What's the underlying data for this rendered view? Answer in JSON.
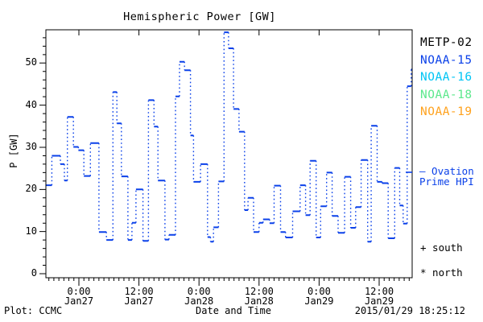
{
  "title": "Hemispheric Power [GW]",
  "colors": {
    "curve": "#0b41e9",
    "frame": "#000000",
    "text": "#000000",
    "ovation": "#0b41e9"
  },
  "axes": {
    "y_label": "P [GW]",
    "y_ticks": [
      0,
      10,
      20,
      30,
      40,
      50
    ],
    "y_minor_step": 2,
    "ylim": [
      0,
      57.9
    ],
    "x_axis_title": "Date and Time",
    "x_major_hours": [
      0,
      12,
      24,
      36,
      48,
      60
    ],
    "x_tick_labels": [
      {
        "time": "0:00",
        "date": "Jan27"
      },
      {
        "time": "12:00",
        "date": "Jan27"
      },
      {
        "time": "0:00",
        "date": "Jan28"
      },
      {
        "time": "12:00",
        "date": "Jan28"
      },
      {
        "time": "0:00",
        "date": "Jan29"
      },
      {
        "time": "12:00",
        "date": "Jan29"
      }
    ],
    "xlim_hours": [
      -6.6,
      66.6
    ]
  },
  "legend": {
    "items": [
      {
        "label": "METP-02",
        "color": "#000000"
      },
      {
        "label": "NOAA-15",
        "color": "#0b41e9"
      },
      {
        "label": "NOAA-16",
        "color": "#00c5f5"
      },
      {
        "label": "NOAA-18",
        "color": "#5ce88c"
      },
      {
        "label": "NOAA-19",
        "color": "#ffa21e"
      }
    ]
  },
  "annotations": {
    "series_marker_line1": "– Ovation",
    "series_marker_line2": "Prime HPI",
    "south_symbol_label": "+ south",
    "north_symbol_label": "* north",
    "plot_credit": "Plot: CCMC",
    "timestamp": "2015/01/29 18:25:12"
  },
  "chart_data": {
    "type": "step-line",
    "series_name": "Ovation Prime HPI",
    "title": "Hemispheric Power [GW]",
    "xlabel": "Date and Time",
    "ylabel": "P [GW]",
    "x_unit": "hours since 2015-01-27 00:00 UT (negative = Jan26)",
    "y_unit": "GW",
    "ylim": [
      0,
      57.9
    ],
    "xlim": [
      -6.6,
      66.6
    ],
    "line_style": "horizontal segments solid, vertical connectors dotted",
    "steps_hour_gw": [
      [
        -6.6,
        21.0
      ],
      [
        -5.4,
        28.0
      ],
      [
        -3.7,
        26.0
      ],
      [
        -2.9,
        22.1
      ],
      [
        -2.3,
        37.2
      ],
      [
        -1.1,
        30.1
      ],
      [
        -0.1,
        29.3
      ],
      [
        1.0,
        23.2
      ],
      [
        2.3,
        31.0
      ],
      [
        4.0,
        9.9
      ],
      [
        5.5,
        8.0
      ],
      [
        6.8,
        43.1
      ],
      [
        7.6,
        35.7
      ],
      [
        8.5,
        23.1
      ],
      [
        9.8,
        8.0
      ],
      [
        10.6,
        12.1
      ],
      [
        11.4,
        20.0
      ],
      [
        12.8,
        7.8
      ],
      [
        13.9,
        41.2
      ],
      [
        15.0,
        34.9
      ],
      [
        15.8,
        22.1
      ],
      [
        17.2,
        8.1
      ],
      [
        18.0,
        9.2
      ],
      [
        19.3,
        42.1
      ],
      [
        20.1,
        50.3
      ],
      [
        21.1,
        48.3
      ],
      [
        22.3,
        32.8
      ],
      [
        22.9,
        21.8
      ],
      [
        24.3,
        26.0
      ],
      [
        25.7,
        8.7
      ],
      [
        26.3,
        7.6
      ],
      [
        26.9,
        11.0
      ],
      [
        27.9,
        21.9
      ],
      [
        29.0,
        57.3
      ],
      [
        29.9,
        53.5
      ],
      [
        30.9,
        39.1
      ],
      [
        32.0,
        33.7
      ],
      [
        33.1,
        15.1
      ],
      [
        33.8,
        18.0
      ],
      [
        34.9,
        9.9
      ],
      [
        36.0,
        12.1
      ],
      [
        36.8,
        12.9
      ],
      [
        38.1,
        12.0
      ],
      [
        39.0,
        20.9
      ],
      [
        40.3,
        9.9
      ],
      [
        41.3,
        8.6
      ],
      [
        42.7,
        14.8
      ],
      [
        44.2,
        21.0
      ],
      [
        45.3,
        13.9
      ],
      [
        46.2,
        26.8
      ],
      [
        47.4,
        8.6
      ],
      [
        48.3,
        16.0
      ],
      [
        49.5,
        24.0
      ],
      [
        50.6,
        13.7
      ],
      [
        51.8,
        9.7
      ],
      [
        53.1,
        23.0
      ],
      [
        54.3,
        10.9
      ],
      [
        55.3,
        15.8
      ],
      [
        56.4,
        27.0
      ],
      [
        57.7,
        7.6
      ],
      [
        58.4,
        35.1
      ],
      [
        59.6,
        21.8
      ],
      [
        60.6,
        21.5
      ],
      [
        61.8,
        8.4
      ],
      [
        63.1,
        25.1
      ],
      [
        64.1,
        16.2
      ],
      [
        64.8,
        11.9
      ],
      [
        65.6,
        44.5
      ],
      [
        66.4,
        48.5
      ]
    ],
    "end_hour": 66.6
  }
}
